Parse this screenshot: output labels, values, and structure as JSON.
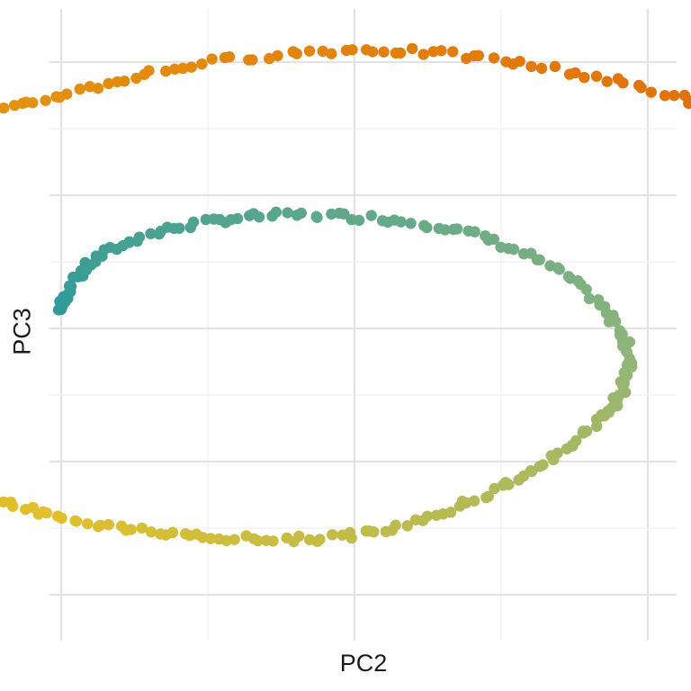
{
  "chart_data": {
    "type": "scatter",
    "title": "",
    "xlabel": "PC2",
    "ylabel": "PC3",
    "xlim": [
      -2.5,
      2.5
    ],
    "ylim": [
      -2.5,
      2.5
    ],
    "x_ticks": [
      -2.5,
      -2.0,
      -1.5,
      -1.0,
      -0.5,
      0.0,
      0.5,
      1.0,
      1.5,
      2.0,
      2.5
    ],
    "y_ticks": [
      -2.0,
      -1.5,
      -1.0,
      -0.5,
      0.0,
      0.5,
      1.0,
      1.5,
      2.0
    ],
    "major_x_ticks": [
      -2.0,
      -1.0,
      0.0,
      1.0,
      2.0
    ],
    "major_y_ticks": [
      -2.0,
      -1.0,
      0.0,
      1.0,
      2.0
    ],
    "tick_labels_shown": false,
    "grid": true,
    "legend": "none",
    "color_gradient": [
      "#2E9A9A",
      "#8DB57C",
      "#E0C02B",
      "#E29B12",
      "#E26A08",
      "#EE0A12"
    ],
    "points": [
      [
        -1.0,
        0.14
      ],
      [
        -0.93,
        0.43
      ],
      [
        -0.72,
        0.69
      ],
      [
        -0.39,
        0.83
      ],
      [
        0.0,
        0.84
      ],
      [
        0.39,
        0.72
      ],
      [
        0.7,
        0.42
      ],
      [
        0.9,
        0.0
      ],
      [
        0.93,
        -0.34
      ],
      [
        0.84,
        -0.68
      ],
      [
        0.63,
        -1.04
      ],
      [
        0.35,
        -1.34
      ],
      [
        0.0,
        -1.55
      ],
      [
        -0.37,
        -1.58
      ],
      [
        -0.75,
        -1.51
      ],
      [
        -1.11,
        -1.36
      ],
      [
        -1.44,
        -1.11
      ],
      [
        -1.72,
        -0.75
      ],
      [
        -1.89,
        -0.38
      ],
      [
        -1.98,
        0.01
      ],
      [
        -1.98,
        0.4
      ],
      [
        -1.87,
        0.82
      ],
      [
        -1.66,
        1.2
      ],
      [
        -1.34,
        1.52
      ],
      [
        -0.97,
        1.77
      ],
      [
        -0.52,
        1.99
      ],
      [
        0.0,
        2.09
      ],
      [
        0.47,
        2.02
      ],
      [
        0.96,
        1.82
      ],
      [
        1.36,
        1.55
      ],
      [
        1.7,
        1.22
      ],
      [
        1.96,
        0.79
      ],
      [
        2.12,
        0.35
      ],
      [
        2.2,
        -0.1
      ],
      [
        2.2,
        -0.5
      ],
      [
        2.12,
        -0.93
      ],
      [
        2.0,
        -1.3
      ],
      [
        1.9,
        -1.66
      ]
    ]
  }
}
